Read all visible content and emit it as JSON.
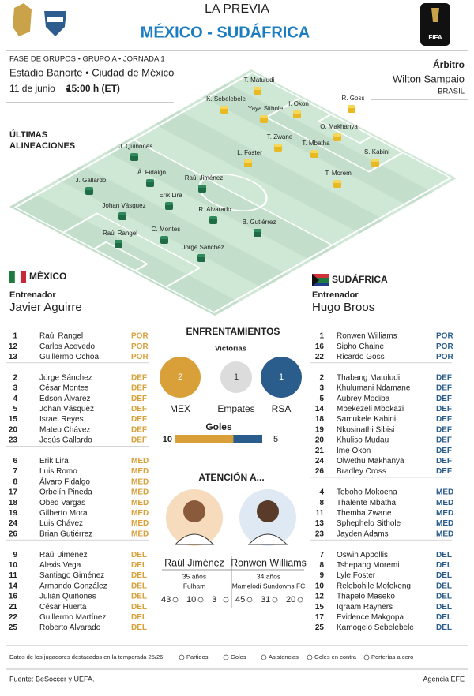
{
  "header": {
    "title": "LA PREVIA",
    "match": "MÉXICO - SUDÁFRICA",
    "logo_text": "FIFA"
  },
  "match_info": {
    "phase": "FASE DE GRUPOS • GRUPO A • JORNADA 1",
    "venue": "Estadio Banorte • Ciudad de México",
    "date": "11 de junio",
    "time": "15:00 h (ET)"
  },
  "referee": {
    "label": "Árbitro",
    "name": "Wilton Sampaio",
    "country": "BRASIL"
  },
  "lineups": {
    "title": [
      "ÚLTIMAS",
      "ALINEACIONES"
    ],
    "mexico": [
      "J. Quiñones",
      "Á. Fidalgo",
      "J. Gallardo",
      "Raúl Jiménez",
      "Erik Lira",
      "Johan Vásquez",
      "R. Alvarado",
      "C. Montes",
      "Raúl Rangel",
      "B. Gutiérrez",
      "Jorge Sánchez"
    ],
    "south_africa": [
      "T. Matuludi",
      "K. Sebelebele",
      "Yaya Sithole",
      "I. Okon",
      "R. Goss",
      "T. Zwane",
      "O. Makhanya",
      "T. Mbatha",
      "L. Foster",
      "S. Kabini",
      "T. Moremi"
    ]
  },
  "teams": [
    {
      "name": "MÉXICO",
      "coach_label": "Entrenador",
      "coach": "Javier Aguirre",
      "squad": [
        [
          1,
          "Raúl Rangel",
          "POR"
        ],
        [
          12,
          "Carlos Acevedo",
          "POR"
        ],
        [
          13,
          "Guillermo Ochoa",
          "POR"
        ],
        [
          2,
          "Jorge Sánchez",
          "DEF"
        ],
        [
          3,
          "César Montes",
          "DEF"
        ],
        [
          4,
          "Edson Álvarez",
          "DEF"
        ],
        [
          5,
          "Johan Vásquez",
          "DEF"
        ],
        [
          15,
          "Israel Reyes",
          "DEF"
        ],
        [
          20,
          "Mateo Chávez",
          "DEF"
        ],
        [
          23,
          "Jesús Gallardo",
          "DEF"
        ],
        [
          6,
          "Erik Lira",
          "MED"
        ],
        [
          7,
          "Luis Romo",
          "MED"
        ],
        [
          8,
          "Álvaro Fidalgo",
          "MED"
        ],
        [
          17,
          "Orbelín Pineda",
          "MED"
        ],
        [
          18,
          "Obed Vargas",
          "MED"
        ],
        [
          19,
          "Gilberto Mora",
          "MED"
        ],
        [
          24,
          "Luis Chávez",
          "MED"
        ],
        [
          26,
          "Brian Gutiérrez",
          "MED"
        ],
        [
          9,
          "Raúl Jiménez",
          "DEL"
        ],
        [
          10,
          "Alexis Vega",
          "DEL"
        ],
        [
          11,
          "Santiago Giménez",
          "DEL"
        ],
        [
          14,
          "Armando González",
          "DEL"
        ],
        [
          16,
          "Julián Quiñones",
          "DEL"
        ],
        [
          21,
          "César Huerta",
          "DEL"
        ],
        [
          22,
          "Guillermo Martínez",
          "DEL"
        ],
        [
          25,
          "Roberto Alvarado",
          "DEL"
        ]
      ]
    },
    {
      "name": "SUDÁFRICA",
      "coach_label": "Entrenador",
      "coach": "Hugo Broos",
      "squad": [
        [
          1,
          "Ronwen Williams",
          "POR"
        ],
        [
          16,
          "Sipho Chaine",
          "POR"
        ],
        [
          22,
          "Ricardo Goss",
          "POR"
        ],
        [
          2,
          "Thabang Matuludi",
          "DEF"
        ],
        [
          3,
          "Khulumani Ndamane",
          "DEF"
        ],
        [
          5,
          "Aubrey Modiba",
          "DEF"
        ],
        [
          14,
          "Mbekezeli Mbokazi",
          "DEF"
        ],
        [
          18,
          "Samukele Kabini",
          "DEF"
        ],
        [
          19,
          "Nkosinathi Sibisi",
          "DEF"
        ],
        [
          20,
          "Khuliso Mudau",
          "DEF"
        ],
        [
          21,
          "Ime Okon",
          "DEF"
        ],
        [
          24,
          "Olwethu Makhanya",
          "DEF"
        ],
        [
          26,
          "Bradley Cross",
          "DEF"
        ],
        [
          4,
          "Teboho Mokoena",
          "MED"
        ],
        [
          8,
          "Thalente Mbatha",
          "MED"
        ],
        [
          11,
          "Themba Zwane",
          "MED"
        ],
        [
          13,
          "Sphephelo Sithole",
          "MED"
        ],
        [
          23,
          "Jayden Adams",
          "MED"
        ],
        [
          7,
          "Oswin Appollis",
          "DEL"
        ],
        [
          8,
          "Tshepang Moremi",
          "DEL"
        ],
        [
          9,
          "Lyle Foster",
          "DEL"
        ],
        [
          10,
          "Relebohile Mofokeng",
          "DEL"
        ],
        [
          12,
          "Thapelo Maseko",
          "DEL"
        ],
        [
          15,
          "Iqraam Rayners",
          "DEL"
        ],
        [
          17,
          "Evidence Makgopa",
          "DEL"
        ],
        [
          25,
          "Kamogelo Sebelebele",
          "DEL"
        ]
      ]
    }
  ],
  "head_to_head": {
    "title": "ENFRENTAMIENTOS",
    "wins_label": "Victorias",
    "wins": [
      {
        "label": "MEX",
        "value": 2,
        "color": "#d9a03a"
      },
      {
        "label": "Empates",
        "value": 1,
        "color": "#dcdcdc"
      },
      {
        "label": "RSA",
        "value": 1,
        "color": "#2a5d8c"
      }
    ],
    "goals_label": "Goles",
    "goals": [
      10,
      5
    ],
    "goals_colors": [
      "#d9a03a",
      "#2a5d8c"
    ]
  },
  "spotlight": {
    "title": "ATENCIÓN A...",
    "players": [
      {
        "name": "Raúl Jiménez",
        "age": "35 años",
        "club": "Fulham",
        "stats": [
          43,
          10,
          3
        ]
      },
      {
        "name": "Ronwen Williams",
        "age": "34 años",
        "club": "Mamelodi Sundowns FC",
        "stats": [
          45,
          31,
          20
        ]
      }
    ]
  },
  "footer": {
    "note": "Datos de los jugadores destacados en la temporada 25/26.",
    "legend": [
      "Partidos",
      "Goles",
      "Asistencias",
      "Goles en contra",
      "Porterías a cero"
    ],
    "source": "Fuente: BeSoccer y UEFA.",
    "agency": "Agencia EFE"
  }
}
